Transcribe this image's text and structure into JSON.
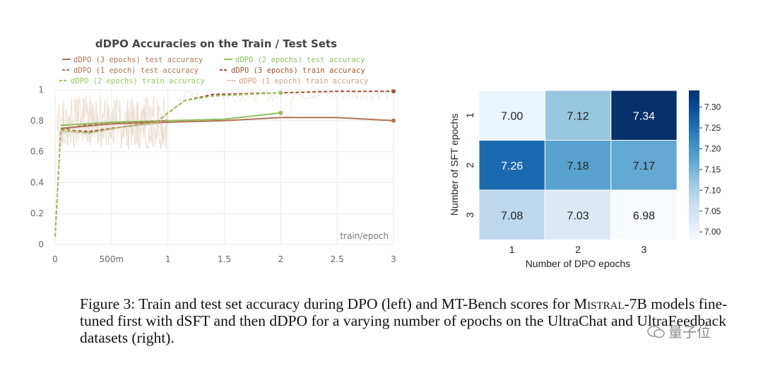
{
  "chart_data": [
    {
      "type": "line",
      "title": "dDPO Accuracies on the Train / Test Sets",
      "xlabel": "train/epoch",
      "ylabel": "",
      "xlim": [
        0,
        3
      ],
      "ylim": [
        0,
        1
      ],
      "x_ticks": [
        0,
        0.5,
        1,
        1.5,
        2,
        2.5,
        3
      ],
      "x_tick_labels": [
        "0",
        "500m",
        "1",
        "1.5",
        "2",
        "2.5",
        "3"
      ],
      "y_ticks": [
        0,
        0.2,
        0.4,
        0.6,
        0.8,
        1
      ],
      "y_tick_labels": [
        "0",
        "0.2",
        "0.4",
        "0.6",
        "0.8",
        "1"
      ],
      "grid": true,
      "legend_position": "top",
      "series": [
        {
          "name": "dDPO (3 epochs) test accuracy",
          "color": "#b07355",
          "style": "solid",
          "x": [
            0.05,
            0.5,
            1,
            1.5,
            2,
            2.5,
            3
          ],
          "y": [
            0.75,
            0.78,
            0.79,
            0.8,
            0.82,
            0.82,
            0.8
          ]
        },
        {
          "name": "dDPO (2 epochs) test accuracy",
          "color": "#8fbf5a",
          "style": "solid",
          "x": [
            0.05,
            0.5,
            1,
            1.5,
            2
          ],
          "y": [
            0.77,
            0.79,
            0.8,
            0.81,
            0.85
          ]
        },
        {
          "name": "dDPO (1 epoch) test accuracy",
          "color": "#b07355",
          "style": "dashed",
          "x": [
            0.05,
            0.25,
            0.5,
            0.75,
            1
          ],
          "y": [
            0.74,
            0.77,
            0.78,
            0.79,
            0.8
          ]
        },
        {
          "name": "dDPO (3 epochs) train accuracy",
          "color": "#a0522d",
          "style": "dashed",
          "x": [
            0,
            0.05,
            0.3,
            0.6,
            0.9,
            1.0,
            1.15,
            1.4,
            2.0,
            2.5,
            3.0
          ],
          "y": [
            0.05,
            0.74,
            0.73,
            0.76,
            0.79,
            0.85,
            0.93,
            0.97,
            0.98,
            0.99,
            0.99
          ]
        },
        {
          "name": "dDPO (2 epochs) train accuracy",
          "color": "#9dc45c",
          "style": "dashed",
          "x": [
            0,
            0.05,
            0.3,
            0.6,
            0.9,
            1.0,
            1.15,
            1.4,
            1.7,
            2.0
          ],
          "y": [
            0.05,
            0.74,
            0.72,
            0.76,
            0.79,
            0.85,
            0.93,
            0.96,
            0.97,
            0.98
          ]
        },
        {
          "name": "dDPO (1 epoch) train accuracy",
          "color": "#c9a08a",
          "style": "dotted",
          "x": [
            0,
            0.05,
            0.3,
            0.6,
            0.9,
            1.0
          ],
          "y": [
            0.05,
            0.73,
            0.72,
            0.76,
            0.78,
            0.81
          ]
        }
      ],
      "endpoint_markers": [
        {
          "series": "dDPO (3 epochs) test accuracy",
          "x": 3,
          "y": 0.8
        },
        {
          "series": "dDPO (3 epochs) train accuracy",
          "x": 3,
          "y": 0.99
        },
        {
          "series": "dDPO (2 epochs) test accuracy",
          "x": 2,
          "y": 0.85
        },
        {
          "series": "dDPO (2 epochs) train accuracy",
          "x": 2,
          "y": 0.98
        }
      ]
    },
    {
      "type": "heatmap",
      "xlabel": "Number of DPO epochs",
      "ylabel": "Number of SFT epochs",
      "x_categories": [
        "1",
        "2",
        "3"
      ],
      "y_categories": [
        "1",
        "2",
        "3"
      ],
      "values": [
        [
          7.0,
          7.12,
          7.34
        ],
        [
          7.26,
          7.18,
          7.17
        ],
        [
          7.08,
          7.03,
          6.98
        ]
      ],
      "value_labels": [
        [
          "7.00",
          "7.12",
          "7.34"
        ],
        [
          "7.26",
          "7.18",
          "7.17"
        ],
        [
          "7.08",
          "7.03",
          "6.98"
        ]
      ],
      "vmin": 6.98,
      "vmax": 7.34,
      "colorbar_ticks": [
        7.0,
        7.05,
        7.1,
        7.15,
        7.2,
        7.25,
        7.3
      ],
      "colorbar_tick_labels": [
        "7.00",
        "7.05",
        "7.10",
        "7.15",
        "7.20",
        "7.25",
        "7.30"
      ],
      "colormap": [
        "#f7fbff",
        "#deebf7",
        "#c6dbef",
        "#9ecae1",
        "#6baed6",
        "#4292c6",
        "#2171b5",
        "#08519c",
        "#08306b"
      ]
    }
  ],
  "caption": {
    "prefix": "Figure 3: Train and test set accuracy during DPO (left) and MT-Bench scores for ",
    "model_name": "Mistral-7B",
    "suffix": " models fine-tuned first with dSFT and then dDPO for a varying number of epochs on the UltraChat and UltraFeedback datasets (right)."
  },
  "watermark": {
    "text": "量子位"
  }
}
